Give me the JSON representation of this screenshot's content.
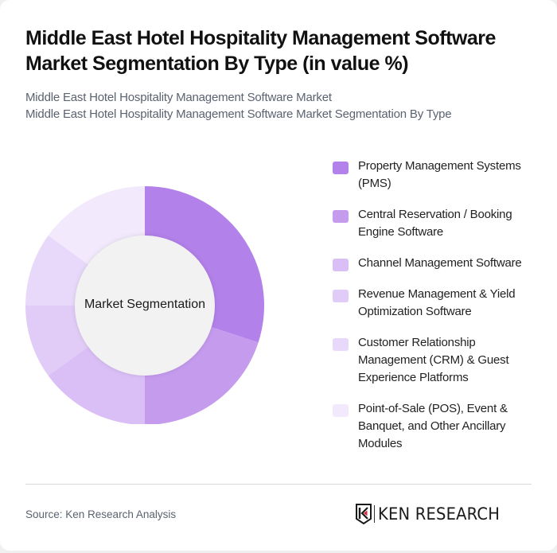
{
  "header": {
    "title": "Middle East Hotel Hospitality Management Software Market Segmentation By Type (in value %)",
    "subtitle_lines": [
      "Middle East Hotel Hospitality Management Software Market",
      "Middle East Hotel Hospitality Management Software Market Segmentation By Type"
    ]
  },
  "chart": {
    "center_label": "Market Segmentation"
  },
  "legend": [
    {
      "label": "Property Management Systems (PMS)",
      "color": "#b381ea"
    },
    {
      "label": "Central Reservation / Booking Engine Software",
      "color": "#c59bee"
    },
    {
      "label": "Channel Management Software",
      "color": "#d9bff6"
    },
    {
      "label": "Revenue Management & Yield Optimization Software",
      "color": "#e1ccf7"
    },
    {
      "label": "Customer Relationship Management (CRM) & Guest Experience Platforms",
      "color": "#e8d9fa"
    },
    {
      "label": "Point-of-Sale (POS), Event & Banquet, and Other Ancillary Modules",
      "color": "#f2eafc"
    }
  ],
  "footer": {
    "source": "Source: Ken Research Analysis",
    "logo_text": "KEN RESEARCH"
  },
  "chart_data": {
    "type": "pie",
    "subtype": "donut",
    "title": "Middle East Hotel Hospitality Management Software Market Segmentation By Type (in value %)",
    "center_label": "Market Segmentation",
    "categories": [
      "Property Management Systems (PMS)",
      "Central Reservation / Booking Engine Software",
      "Channel Management Software",
      "Revenue Management & Yield Optimization Software",
      "Customer Relationship Management (CRM) & Guest Experience Platforms",
      "Point-of-Sale (POS), Event & Banquet, and Other Ancillary Modules"
    ],
    "values": [
      30,
      20,
      15,
      10,
      10,
      15
    ],
    "colors": [
      "#b381ea",
      "#c59bee",
      "#d9bff6",
      "#e1ccf7",
      "#e8d9fa",
      "#f2eafc"
    ],
    "unit": "%",
    "legend_position": "right",
    "start_angle": "top, clockwise"
  }
}
